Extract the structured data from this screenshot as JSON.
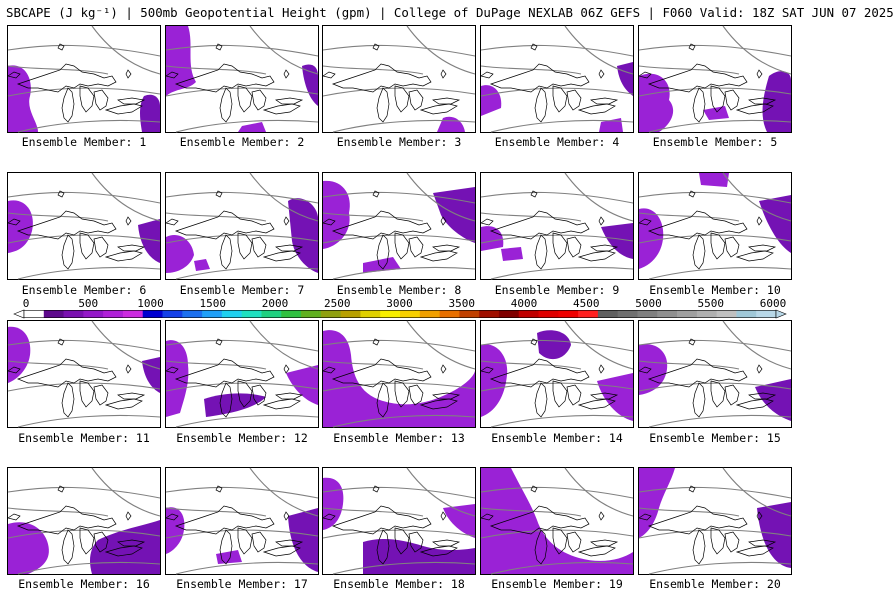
{
  "title": "SBCAPE (J kg⁻¹) | 500mb Geopotential Height (gpm) | College of DuPage NEXLAB 06Z GEFS | F060 Valid: 18Z SAT JUN 07 2025",
  "members": [
    {
      "label": "Ensemble Member: 1"
    },
    {
      "label": "Ensemble Member: 2"
    },
    {
      "label": "Ensemble Member: 3"
    },
    {
      "label": "Ensemble Member: 4"
    },
    {
      "label": "Ensemble Member: 5"
    },
    {
      "label": "Ensemble Member: 6"
    },
    {
      "label": "Ensemble Member: 7"
    },
    {
      "label": "Ensemble Member: 8"
    },
    {
      "label": "Ensemble Member: 9"
    },
    {
      "label": "Ensemble Member: 10"
    },
    {
      "label": "Ensemble Member: 11"
    },
    {
      "label": "Ensemble Member: 12"
    },
    {
      "label": "Ensemble Member: 13"
    },
    {
      "label": "Ensemble Member: 14"
    },
    {
      "label": "Ensemble Member: 15"
    },
    {
      "label": "Ensemble Member: 16"
    },
    {
      "label": "Ensemble Member: 17"
    },
    {
      "label": "Ensemble Member: 18"
    },
    {
      "label": "Ensemble Member: 19"
    },
    {
      "label": "Ensemble Member: 20"
    }
  ],
  "colorbar": {
    "ticks": [
      "0",
      "500",
      "1000",
      "1500",
      "2000",
      "2500",
      "3000",
      "3500",
      "4000",
      "4500",
      "5000",
      "5500",
      "6000"
    ],
    "colors": [
      "#ffffff",
      "#5e0a8c",
      "#7a10b0",
      "#9418c8",
      "#b020d8",
      "#cc2ae0",
      "#0000d0",
      "#1440e8",
      "#1c70f0",
      "#20a0f8",
      "#20d0f0",
      "#20e0c0",
      "#20d080",
      "#30c040",
      "#60b020",
      "#90a010",
      "#b8a000",
      "#e0d000",
      "#f8f000",
      "#f8d000",
      "#f0a000",
      "#e87000",
      "#c04000",
      "#a01000",
      "#800000",
      "#c00000",
      "#e00000",
      "#f00000",
      "#ff2020",
      "#606060",
      "#707070",
      "#808080",
      "#909090",
      "#a0a0a0",
      "#b0b0b0",
      "#c0c0c0",
      "#a0c8d8",
      "#b8d8e8"
    ],
    "shading": "#9a22d6",
    "shading_dark": "#7412b4"
  }
}
